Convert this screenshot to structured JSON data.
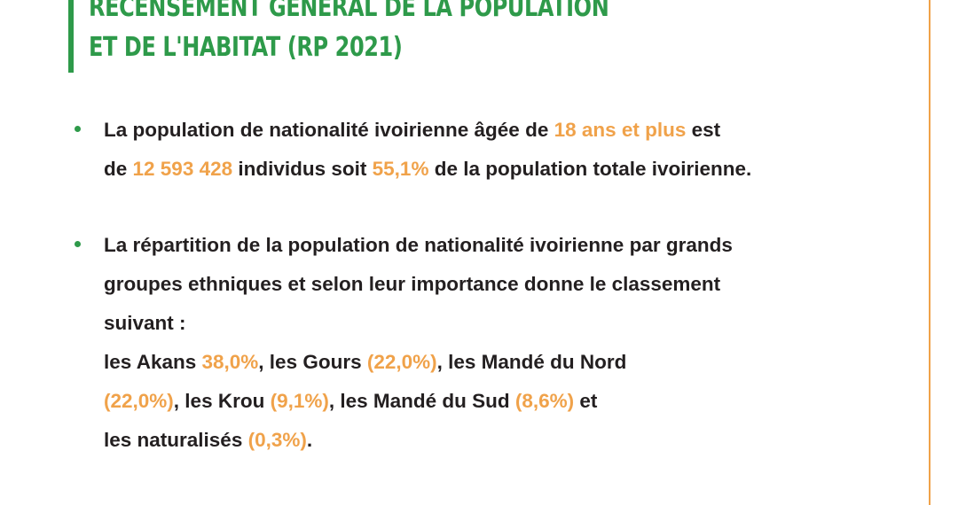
{
  "title": {
    "line1": "RÉCENSEMENT GÉNÉRAL DE LA POPULATION",
    "line2": "ET DE L'HABITAT (RP 2021)"
  },
  "colors": {
    "accent_green": "#2e9a4a",
    "highlight_orange": "#f0a24a",
    "text": "#231f20"
  },
  "bullet1": {
    "l1_a": "La population de nationalité ivoirienne âgée de ",
    "l1_hl": "18 ans et plus",
    "l1_b": " est",
    "l2_a": "de ",
    "l2_hl1": "12 593 428",
    "l2_b": " individus soit ",
    "l2_hl2": "55,1%",
    "l2_c": " de la population totale ivoirienne."
  },
  "bullet2": {
    "l1": "La répartition de la population de nationalité ivoirienne par grands",
    "l2": "groupes ethniques et selon leur importance donne le classement",
    "l3": "suivant :",
    "l4_a": "les Akans ",
    "l4_hl1": "38,0%",
    "l4_b": ", les Gours ",
    "l4_hl2": "(22,0%)",
    "l4_c": ", les Mandé du Nord",
    "l5_hl1": "(22,0%)",
    "l5_a": ", les Krou ",
    "l5_hl2": "(9,1%)",
    "l5_b": ", les Mandé du Sud ",
    "l5_hl3": "(8,6%)",
    "l5_c": " et",
    "l6_a": "les naturalisés ",
    "l6_hl": "(0,3%)",
    "l6_b": "."
  }
}
